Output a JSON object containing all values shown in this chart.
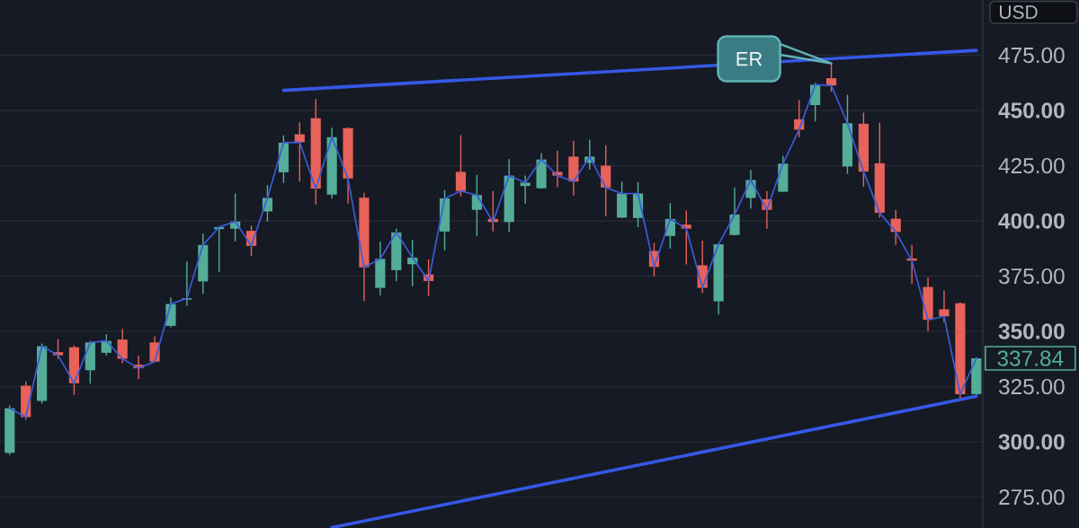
{
  "chart_data": {
    "type": "candlestick",
    "ylabel": "USD",
    "categories": [
      null,
      null,
      null,
      null,
      null,
      null,
      null,
      null,
      null,
      null,
      null,
      null,
      null,
      null,
      null,
      null,
      null,
      null,
      null,
      null,
      null,
      null,
      null,
      null,
      null,
      null,
      null,
      null,
      null,
      null,
      null,
      null,
      null,
      null,
      null,
      null,
      null,
      null,
      null,
      null,
      null,
      null,
      null,
      null,
      null,
      null,
      null,
      null,
      null,
      null,
      null,
      null,
      null,
      null,
      null,
      null,
      null,
      null,
      null,
      null,
      null
    ],
    "ylim": [
      261,
      500
    ],
    "yticks": [
      {
        "value": 275,
        "label": "275.00"
      },
      {
        "value": 300,
        "label": "300.00"
      },
      {
        "value": 325,
        "label": "325.00"
      },
      {
        "value": 350,
        "label": "350.00"
      },
      {
        "value": 375,
        "label": "375.00"
      },
      {
        "value": 400,
        "label": "400.00"
      },
      {
        "value": 425,
        "label": "425.00"
      },
      {
        "value": 450,
        "label": "450.00"
      },
      {
        "value": 475,
        "label": "475.00"
      }
    ],
    "grid": "y",
    "series": [
      {
        "ohlc": [
          [
            295.0,
            316.5,
            294.0,
            315.2
          ],
          [
            325.4,
            327.4,
            310.0,
            311.2
          ],
          [
            318.5,
            344.5,
            317.3,
            343.3
          ],
          [
            340.6,
            346.5,
            337.6,
            339.2
          ],
          [
            342.8,
            343.7,
            321.3,
            326.5
          ],
          [
            332.4,
            345.7,
            326.3,
            345.0
          ],
          [
            340.3,
            348.7,
            339.0,
            345.7
          ],
          [
            346.3,
            351.1,
            335.6,
            337.6
          ],
          [
            334.9,
            339.0,
            328.4,
            333.3
          ],
          [
            345.0,
            347.8,
            336.0,
            336.3
          ],
          [
            352.5,
            365.4,
            351.8,
            362.4
          ],
          [
            364.4,
            381.6,
            361.6,
            365.0
          ],
          [
            372.6,
            394.2,
            367.0,
            389.1
          ],
          [
            396.3,
            397.5,
            376.9,
            397.2
          ],
          [
            396.5,
            412.4,
            390.7,
            399.7
          ],
          [
            395.5,
            397.9,
            384.1,
            388.7
          ],
          [
            404.3,
            416.2,
            399.7,
            410.4
          ],
          [
            422.0,
            438.8,
            417.2,
            435.4
          ],
          [
            439.2,
            444.6,
            417.8,
            435.6
          ],
          [
            446.5,
            455.2,
            407.4,
            414.6
          ],
          [
            411.9,
            442.2,
            410.1,
            437.9
          ],
          [
            442.0,
            442.4,
            407.8,
            419.2
          ],
          [
            410.5,
            412.7,
            363.7,
            379.0
          ],
          [
            369.7,
            390.7,
            366.3,
            382.8
          ],
          [
            377.7,
            396.4,
            372.8,
            394.8
          ],
          [
            380.4,
            391.5,
            370.5,
            383.4
          ],
          [
            375.8,
            382.6,
            366.1,
            372.8
          ],
          [
            395.2,
            413.9,
            386.7,
            410.2
          ],
          [
            422.2,
            438.8,
            411.1,
            413.5
          ],
          [
            405.0,
            420.8,
            393.2,
            411.7
          ],
          [
            400.9,
            413.5,
            395.2,
            399.5
          ],
          [
            399.5,
            428.0,
            394.9,
            420.5
          ],
          [
            415.8,
            420.5,
            407.8,
            417.3
          ],
          [
            414.8,
            430.7,
            414.5,
            427.8
          ],
          [
            422.2,
            431.8,
            415.2,
            420.5
          ],
          [
            429.1,
            436.3,
            411.5,
            417.8
          ],
          [
            426.3,
            436.8,
            423.3,
            429.1
          ],
          [
            425.0,
            434.2,
            402.0,
            415.1
          ],
          [
            401.5,
            417.8,
            401.3,
            412.4
          ],
          [
            401.3,
            417.6,
            397.2,
            412.4
          ],
          [
            386.4,
            390.0,
            374.9,
            379.2
          ],
          [
            393.2,
            408.1,
            387.5,
            400.9
          ],
          [
            398.3,
            404.7,
            380.3,
            396.5
          ],
          [
            379.9,
            391.1,
            367.4,
            369.7
          ],
          [
            363.6,
            389.8,
            357.6,
            389.4
          ],
          [
            393.6,
            415.1,
            393.5,
            402.9
          ],
          [
            410.4,
            423.0,
            405.6,
            418.5
          ],
          [
            409.8,
            413.5,
            396.5,
            405.0
          ],
          [
            413.2,
            429.5,
            413.0,
            425.9
          ],
          [
            446.0,
            454.8,
            437.9,
            441.3
          ],
          [
            452.4,
            462.5,
            445.0,
            461.6
          ],
          [
            464.6,
            471.3,
            458.5,
            461.3
          ],
          [
            424.6,
            457.1,
            421.3,
            444.2
          ],
          [
            444.0,
            449.0,
            415.5,
            422.3
          ],
          [
            426.1,
            444.4,
            401.5,
            403.7
          ],
          [
            401.0,
            405.0,
            389.1,
            395.0
          ],
          [
            383.0,
            389.1,
            371.5,
            382.0
          ],
          [
            370.1,
            374.5,
            350.1,
            355.2
          ],
          [
            360.0,
            368.5,
            354.1,
            356.8
          ],
          [
            362.7,
            363.1,
            318.6,
            321.6
          ],
          [
            321.6,
            338.3,
            320.5,
            337.8
          ]
        ],
        "colors": [
          "#53ad98",
          "#e6625a",
          "#53ad98",
          "#e6625a",
          "#e6625a",
          "#53ad98",
          "#53ad98",
          "#e6625a",
          "#e6625a",
          "#e6625a",
          "#53ad98",
          "#53ad98",
          "#53ad98",
          "#53ad98",
          "#53ad98",
          "#e6625a",
          "#53ad98",
          "#53ad98",
          "#e6625a",
          "#e6625a",
          "#53ad98",
          "#e6625a",
          "#e6625a",
          "#53ad98",
          "#53ad98",
          "#53ad98",
          "#e6625a",
          "#53ad98",
          "#e6625a",
          "#53ad98",
          "#e6625a",
          "#53ad98",
          "#53ad98",
          "#53ad98",
          "#e6625a",
          "#e6625a",
          "#53ad98",
          "#e6625a",
          "#53ad98",
          "#53ad98",
          "#e6625a",
          "#53ad98",
          "#e6625a",
          "#e6625a",
          "#53ad98",
          "#53ad98",
          "#53ad98",
          "#e6625a",
          "#53ad98",
          "#e6625a",
          "#53ad98",
          "#e6625a",
          "#53ad98",
          "#e6625a",
          "#e6625a",
          "#e6625a",
          "#e6625a",
          "#e6625a",
          "#e6625a",
          "#e6625a",
          "#53ad98"
        ]
      },
      {
        "type": "line",
        "color": "#3b5bdb",
        "values": [
          315.2,
          311.2,
          343.3,
          339.2,
          326.5,
          345.0,
          345.7,
          337.6,
          333.3,
          336.3,
          362.4,
          365.0,
          389.1,
          397.2,
          399.7,
          388.7,
          410.4,
          435.4,
          435.6,
          414.6,
          437.9,
          419.2,
          379.0,
          382.8,
          394.8,
          383.4,
          372.8,
          410.2,
          413.5,
          411.7,
          399.5,
          420.5,
          417.3,
          427.8,
          420.5,
          417.8,
          429.1,
          415.1,
          412.4,
          412.4,
          379.2,
          400.9,
          396.5,
          369.7,
          389.4,
          402.9,
          418.5,
          405.0,
          425.9,
          441.3,
          461.6,
          461.3,
          444.2,
          422.3,
          403.7,
          395.0,
          382.0,
          355.2,
          356.8,
          321.6,
          337.8
        ]
      },
      {
        "type": "line",
        "color": "#3558e6",
        "values": [
          null,
          null,
          null,
          null,
          null,
          null,
          null,
          null,
          null,
          null,
          null,
          null,
          null,
          null,
          null,
          null,
          null,
          459.1,
          null,
          null,
          null,
          null,
          null,
          null,
          null,
          null,
          null,
          null,
          null,
          null,
          null,
          null,
          null,
          null,
          null,
          null,
          null,
          null,
          null,
          null,
          null,
          null,
          null,
          null,
          null,
          null,
          null,
          null,
          null,
          null,
          null,
          null,
          null,
          null,
          null,
          null,
          null,
          null,
          null,
          null,
          477.2
        ]
      },
      {
        "type": "line",
        "color": "#3558e6",
        "values": [
          null,
          null,
          null,
          null,
          null,
          null,
          null,
          null,
          null,
          null,
          null,
          null,
          null,
          null,
          null,
          null,
          null,
          null,
          null,
          null,
          261.2,
          null,
          null,
          null,
          null,
          null,
          null,
          null,
          null,
          null,
          null,
          null,
          null,
          null,
          null,
          null,
          null,
          null,
          null,
          null,
          null,
          null,
          null,
          null,
          null,
          null,
          null,
          null,
          null,
          null,
          null,
          null,
          null,
          null,
          null,
          null,
          null,
          null,
          null,
          null,
          320.6
        ]
      }
    ],
    "annotations": [
      {
        "text": "ER",
        "y": 471.3
      },
      "337.84"
    ]
  }
}
